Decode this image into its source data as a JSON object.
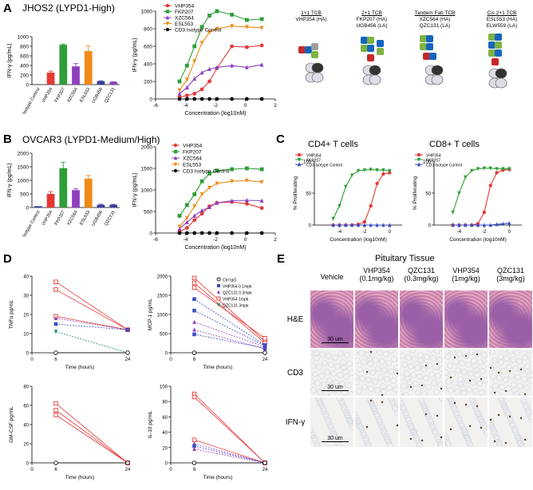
{
  "panels": {
    "A": {
      "label": "A",
      "title": "JHOS2 (LYPD1-High)",
      "tcb": [
        {
          "title": "1+1 TCB",
          "lines": [
            "VHP354 (HA)"
          ]
        },
        {
          "title": "2+1 TCB",
          "lines": [
            "FKP207 (HA)",
            "UGB456 (LA)"
          ]
        },
        {
          "title": "Tandem Fab TCB",
          "lines": [
            "XZC564 (HA)",
            "QZC131 (LA)"
          ]
        },
        {
          "title": "Cis 2+1 TCB",
          "lines": [
            "ESL553 (HA)",
            "ELW559 (LA)"
          ]
        }
      ]
    },
    "B": {
      "label": "B",
      "title": "OVCAR3 (LYPD1-Medium/High)"
    },
    "C": {
      "label": "C",
      "left_title": "CD4+ T cells",
      "right_title": "CD8+ T cells"
    },
    "D": {
      "label": "D"
    },
    "E": {
      "label": "E",
      "title": "Pituitary Tissue",
      "columns": [
        {
          "name": "Vehicle",
          "dose": ""
        },
        {
          "name": "VHP354",
          "dose": "(0.1mg/kg)"
        },
        {
          "name": "QZC131",
          "dose": "(0.3mg/kg)"
        },
        {
          "name": "VHP354",
          "dose": "(1mg/kg)"
        },
        {
          "name": "QZC131",
          "dose": "(3mg/kg)"
        }
      ],
      "rows": [
        "H&E",
        "CD3",
        "IFN-γ"
      ],
      "scale_bar": "30 um"
    }
  },
  "colors": {
    "red": "#e53935",
    "green": "#2e9e3a",
    "purple": "#8e3fbf",
    "orange": "#ef8a17",
    "navy": "#3a3f9e",
    "black": "#111111",
    "blue": "#3b4cc0",
    "teal": "#1f8a7a",
    "he_pink": "#d58fb0",
    "he_purple": "#9a5fa6",
    "ihc_bg": "#f2f1f0"
  },
  "chart_data": [
    {
      "id": "A-bar",
      "type": "bar",
      "title": "",
      "xlabel": "",
      "ylabel": "IFN-γ (pg/mL)",
      "ylim": [
        0,
        1000
      ],
      "yticks": [
        0,
        200,
        400,
        600,
        800,
        1000
      ],
      "categories": [
        "Isotype Control",
        "VHP354",
        "FKP207",
        "XZC564",
        "ESL553",
        "UGB456",
        "QZC131"
      ],
      "values": [
        0,
        250,
        830,
        380,
        700,
        70,
        55
      ],
      "errors": [
        0,
        30,
        15,
        60,
        110,
        10,
        8
      ],
      "bar_colors": [
        "#111111",
        "#e53935",
        "#2e9e3a",
        "#8e3fbf",
        "#ef8a17",
        "#3a3f9e",
        "#8e3fbf"
      ]
    },
    {
      "id": "A-line",
      "type": "line",
      "xlabel": "Concentration (log10nM)",
      "ylabel": "IFN-γ (pg/mL)",
      "xlim": [
        -6,
        2
      ],
      "xticks": [
        -6,
        -4,
        -2,
        0,
        2
      ],
      "ylim": [
        0,
        1000
      ],
      "yticks": [
        0,
        200,
        400,
        600,
        800,
        1000
      ],
      "x": [
        -4.4,
        -3.9,
        -3.4,
        -2.9,
        -2.4,
        -1.9,
        -0.9,
        0.1,
        1.1
      ],
      "series": [
        {
          "name": "VHP354",
          "color": "#e53935",
          "marker": "circle",
          "values": [
            20,
            40,
            60,
            110,
            200,
            350,
            600,
            590,
            610
          ]
        },
        {
          "name": "FKP207",
          "color": "#2e9e3a",
          "marker": "square",
          "values": [
            200,
            380,
            600,
            820,
            950,
            1000,
            960,
            900,
            910
          ]
        },
        {
          "name": "XZC564",
          "color": "#8e3fbf",
          "marker": "triangle",
          "values": [
            60,
            130,
            230,
            300,
            340,
            360,
            380,
            360,
            390
          ]
        },
        {
          "name": "ESL553",
          "color": "#ef8a17",
          "marker": "triangle-down",
          "values": [
            100,
            220,
            430,
            640,
            760,
            800,
            830,
            820,
            810
          ]
        },
        {
          "name": "CD3 Isotype Control",
          "color": "#111111",
          "marker": "circle",
          "values": [
            0,
            0,
            0,
            0,
            0,
            0,
            0,
            0,
            0
          ]
        }
      ]
    },
    {
      "id": "B-bar",
      "type": "bar",
      "title": "",
      "xlabel": "",
      "ylabel": "IFN-γ (pg/mL)",
      "ylim": [
        0,
        2000
      ],
      "yticks": [
        0,
        500,
        1000,
        1500,
        2000
      ],
      "categories": [
        "Isotype Control",
        "VHP354",
        "FKP207",
        "XZC564",
        "ESL553",
        "UGB456",
        "QZC131"
      ],
      "values": [
        50,
        500,
        1450,
        640,
        1060,
        100,
        100
      ],
      "errors": [
        0,
        80,
        220,
        50,
        120,
        20,
        15
      ],
      "bar_colors": [
        "#3a3f9e",
        "#e53935",
        "#2e9e3a",
        "#8e3fbf",
        "#ef8a17",
        "#3a3f9e",
        "#3a3f9e"
      ]
    },
    {
      "id": "B-line",
      "type": "line",
      "xlabel": "Concentration (log10nM)",
      "ylabel": "IFN-γ (pg/mL)",
      "xlim": [
        -6,
        2
      ],
      "xticks": [
        -6,
        -4,
        -2,
        0,
        2
      ],
      "ylim": [
        0,
        2000
      ],
      "yticks": [
        0,
        500,
        1000,
        1500,
        2000
      ],
      "x": [
        -4.4,
        -3.9,
        -3.4,
        -2.9,
        -2.4,
        -1.9,
        -0.9,
        0.1,
        1.1
      ],
      "series": [
        {
          "name": "VHP354",
          "color": "#e53935",
          "marker": "circle",
          "values": [
            30,
            120,
            300,
            450,
            620,
            700,
            720,
            680,
            580
          ]
        },
        {
          "name": "FKP207",
          "color": "#2e9e3a",
          "marker": "square",
          "values": [
            400,
            650,
            900,
            1200,
            1380,
            1450,
            1480,
            1500,
            1480
          ]
        },
        {
          "name": "XZC564",
          "color": "#8e3fbf",
          "marker": "triangle",
          "values": [
            100,
            250,
            400,
            520,
            600,
            700,
            750,
            760,
            750
          ]
        },
        {
          "name": "ESL553",
          "color": "#ef8a17",
          "marker": "triangle-down",
          "values": [
            150,
            350,
            620,
            900,
            1050,
            1150,
            1200,
            1220,
            1180
          ]
        },
        {
          "name": "CD3 Isotype Control",
          "color": "#111111",
          "marker": "circle",
          "values": [
            0,
            0,
            0,
            0,
            0,
            0,
            0,
            0,
            0
          ]
        }
      ]
    },
    {
      "id": "C-left",
      "type": "line",
      "xlabel": "Concentration (log10nM)",
      "ylabel": "% Proliferating",
      "xlim": [
        -6,
        1
      ],
      "xticks": [
        -4,
        -2,
        0
      ],
      "ylim": [
        0,
        100
      ],
      "yticks": [
        0,
        50,
        100
      ],
      "x": [
        -4.5,
        -4,
        -3.5,
        -3,
        -2.5,
        -2,
        -1.5,
        -1,
        -0.5,
        0
      ],
      "series": [
        {
          "name": "VHP354",
          "color": "#e53935",
          "marker": "circle",
          "values": [
            0,
            0,
            0,
            0,
            1,
            5,
            30,
            65,
            80,
            82
          ]
        },
        {
          "name": "FKP207",
          "color": "#2e9e3a",
          "marker": "triangle-down",
          "values": [
            10,
            30,
            60,
            78,
            85,
            86,
            87,
            86,
            86,
            85
          ]
        },
        {
          "name": "CD3 Isotype Control",
          "color": "#3b4cc0",
          "marker": "triangle",
          "values": [
            0,
            0,
            0,
            0,
            0,
            0,
            0,
            0,
            0,
            0
          ]
        }
      ]
    },
    {
      "id": "C-right",
      "type": "line",
      "xlabel": "Concentration (log10nM)",
      "ylabel": "% Proliferating",
      "xlim": [
        -6,
        1
      ],
      "xticks": [
        -4,
        -2,
        0
      ],
      "ylim": [
        0,
        100
      ],
      "yticks": [
        0,
        50,
        100
      ],
      "x": [
        -4.5,
        -4,
        -3.5,
        -3,
        -2.5,
        -2,
        -1.5,
        -1,
        -0.5,
        0
      ],
      "series": [
        {
          "name": "VHP354",
          "color": "#e53935",
          "marker": "circle",
          "values": [
            0,
            0,
            0,
            0,
            2,
            20,
            62,
            82,
            86,
            87
          ]
        },
        {
          "name": "FKP207",
          "color": "#2e9e3a",
          "marker": "triangle-down",
          "values": [
            20,
            50,
            75,
            85,
            88,
            89,
            89,
            88,
            88,
            88
          ]
        },
        {
          "name": "CD3 Isotype Control",
          "color": "#3b4cc0",
          "marker": "triangle",
          "values": [
            0,
            0,
            0,
            0,
            0,
            0,
            0,
            1,
            2,
            3
          ]
        }
      ]
    },
    {
      "id": "D-TNF",
      "type": "line",
      "xlabel": "Time (hours)",
      "ylabel": "TNFα  pg/mL",
      "xlim": [
        0,
        24
      ],
      "xticks": [
        0,
        6,
        24
      ],
      "ylim": [
        0,
        40
      ],
      "yticks": [
        0,
        10,
        20,
        30,
        40
      ],
      "legend": [
        {
          "name": "Ctrl IgG",
          "color": "#111111",
          "marker": "circle-open"
        },
        {
          "name": "VHP354 0.1mpk",
          "color": "#3b4cc0",
          "marker": "square"
        },
        {
          "name": "QZC131 0.3mpk",
          "color": "#8e3fbf",
          "marker": "triangle"
        },
        {
          "name": "VHP354 1mpk",
          "color": "#e53935",
          "marker": "square-open"
        },
        {
          "name": "QZC131 3mpk",
          "color": "#1f8a7a",
          "marker": "triangle-down"
        }
      ],
      "subjects": [
        {
          "color": "#e53935",
          "marker": "square-open",
          "values": [
            37,
            12
          ]
        },
        {
          "color": "#e53935",
          "marker": "square-open",
          "values": [
            33,
            12
          ]
        },
        {
          "color": "#e53935",
          "marker": "square-open",
          "values": [
            19,
            12
          ]
        },
        {
          "color": "#8e3fbf",
          "marker": "triangle",
          "values": [
            18,
            12
          ]
        },
        {
          "color": "#3b4cc0",
          "marker": "square",
          "values": [
            15,
            12
          ]
        },
        {
          "color": "#1f8a7a",
          "marker": "triangle-down",
          "values": [
            11,
            0
          ]
        },
        {
          "color": "#111111",
          "marker": "circle-open",
          "values": [
            0,
            0
          ]
        }
      ]
    },
    {
      "id": "D-MCP",
      "type": "line",
      "xlabel": "Time (hours)",
      "ylabel": "MCP-1  pg/mL",
      "xlim": [
        0,
        24
      ],
      "xticks": [
        0,
        6,
        24
      ],
      "ylim": [
        0,
        2000
      ],
      "yticks": [
        0,
        500,
        1000,
        1500,
        2000
      ],
      "subjects": [
        {
          "color": "#e53935",
          "marker": "square-open",
          "values": [
            1950,
            300
          ]
        },
        {
          "color": "#e53935",
          "marker": "square-open",
          "values": [
            1820,
            250
          ]
        },
        {
          "color": "#e53935",
          "marker": "square-open",
          "values": [
            1700,
            380
          ]
        },
        {
          "color": "#3b4cc0",
          "marker": "square",
          "values": [
            1400,
            200
          ]
        },
        {
          "color": "#3b4cc0",
          "marker": "square",
          "values": [
            1100,
            180
          ]
        },
        {
          "color": "#8e3fbf",
          "marker": "triangle",
          "values": [
            800,
            150
          ]
        },
        {
          "color": "#8e3fbf",
          "marker": "triangle",
          "values": [
            600,
            100
          ]
        },
        {
          "color": "#3b4cc0",
          "marker": "square",
          "values": [
            480,
            120
          ]
        },
        {
          "color": "#111111",
          "marker": "circle-open",
          "values": [
            0,
            0
          ]
        }
      ]
    },
    {
      "id": "D-GMCSF",
      "type": "line",
      "xlabel": "Time (hours)",
      "ylabel": "GM-CSF pg/mL",
      "xlim": [
        0,
        24
      ],
      "xticks": [
        0,
        6,
        24
      ],
      "ylim": [
        0,
        80
      ],
      "yticks": [
        0,
        20,
        40,
        60,
        80
      ],
      "subjects": [
        {
          "color": "#e53935",
          "marker": "square-open",
          "values": [
            62,
            0
          ]
        },
        {
          "color": "#e53935",
          "marker": "square-open",
          "values": [
            55,
            0
          ]
        },
        {
          "color": "#e53935",
          "marker": "square-open",
          "values": [
            50,
            0
          ]
        },
        {
          "color": "#111111",
          "marker": "circle-open",
          "values": [
            0,
            0
          ]
        }
      ]
    },
    {
      "id": "D-IL10",
      "type": "line",
      "xlabel": "Time (hours)",
      "ylabel": "IL-10 pg/mL",
      "xlim": [
        0,
        24
      ],
      "xticks": [
        0,
        6,
        24
      ],
      "ylim": [
        0,
        100
      ],
      "yticks": [
        0,
        20,
        40,
        60,
        80,
        100
      ],
      "subjects": [
        {
          "color": "#e53935",
          "marker": "square-open",
          "values": [
            90,
            0
          ]
        },
        {
          "color": "#e53935",
          "marker": "square-open",
          "values": [
            86,
            0
          ]
        },
        {
          "color": "#e53935",
          "marker": "square-open",
          "values": [
            30,
            0
          ]
        },
        {
          "color": "#8e3fbf",
          "marker": "triangle",
          "values": [
            25,
            0
          ]
        },
        {
          "color": "#3b4cc0",
          "marker": "square",
          "values": [
            22,
            0
          ]
        },
        {
          "color": "#8e3fbf",
          "marker": "triangle",
          "values": [
            18,
            0
          ]
        },
        {
          "color": "#111111",
          "marker": "circle-open",
          "values": [
            0,
            0
          ]
        }
      ]
    }
  ]
}
